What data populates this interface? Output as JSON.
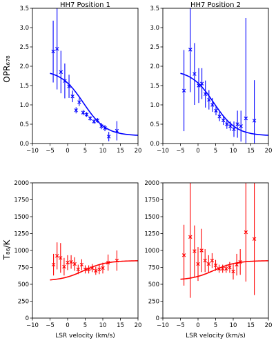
{
  "figure": {
    "shared_ylabels": {
      "top": "OPR₆₇₈",
      "bottom": "T₈₆/K"
    },
    "shared_xlabel": "LSR velocity (km/s)"
  },
  "chart_data": [
    {
      "id": "opr_pos1",
      "type": "scatter",
      "title": "HH7 Position 1",
      "xlabel": "",
      "ylabel": "OPR678",
      "xlim": [
        -10,
        20
      ],
      "ylim": [
        0,
        3.5
      ],
      "xticks": [
        -10,
        -5,
        0,
        5,
        10,
        15,
        20
      ],
      "yticks": [
        0.0,
        0.5,
        1.0,
        1.5,
        2.0,
        2.5,
        3.0,
        3.5
      ],
      "ytick_labels": [
        "0.0",
        "0.5",
        "1.0",
        "1.5",
        "2.0",
        "2.5",
        "3.0",
        "3.5"
      ],
      "color": "#0000ff",
      "points": [
        {
          "x": -4.1,
          "y": 2.38,
          "err": 0.8
        },
        {
          "x": -3.0,
          "y": 2.45,
          "err": 1.05
        },
        {
          "x": -1.9,
          "y": 1.85,
          "err": 0.55
        },
        {
          "x": -0.8,
          "y": 1.62,
          "err": 0.45
        },
        {
          "x": 0.4,
          "y": 1.48,
          "err": 0.3
        },
        {
          "x": 1.4,
          "y": 1.22,
          "err": 0.15
        },
        {
          "x": 2.4,
          "y": 0.86,
          "err": 0.08
        },
        {
          "x": 3.3,
          "y": 1.07,
          "err": 0.1
        },
        {
          "x": 4.4,
          "y": 0.8,
          "err": 0.07
        },
        {
          "x": 5.4,
          "y": 0.75,
          "err": 0.06
        },
        {
          "x": 6.4,
          "y": 0.65,
          "err": 0.06
        },
        {
          "x": 7.5,
          "y": 0.57,
          "err": 0.06
        },
        {
          "x": 8.5,
          "y": 0.6,
          "err": 0.06
        },
        {
          "x": 9.6,
          "y": 0.45,
          "err": 0.08
        },
        {
          "x": 10.6,
          "y": 0.4,
          "err": 0.08
        },
        {
          "x": 11.7,
          "y": 0.18,
          "err": 0.12
        },
        {
          "x": 14.0,
          "y": 0.33,
          "err": 0.25
        }
      ],
      "model": {
        "y_start": 1.9,
        "y_end": 0.2,
        "x_mid": 4.5,
        "width": 3.2,
        "x_start": -5,
        "x_end": 20
      }
    },
    {
      "id": "opr_pos2",
      "type": "scatter",
      "title": "HH7 Position 2",
      "xlabel": "",
      "ylabel": "",
      "xlim": [
        -10,
        20
      ],
      "ylim": [
        0,
        3.5
      ],
      "xticks": [
        -10,
        -5,
        0,
        5,
        10,
        15,
        20
      ],
      "yticks": [
        0.0,
        0.5,
        1.0,
        1.5,
        2.0,
        2.5,
        3.0,
        3.5
      ],
      "ytick_labels": [
        "0.0",
        "0.5",
        "1.0",
        "1.5",
        "2.0",
        "2.5",
        "3.0",
        "3.5"
      ],
      "color": "#0000ff",
      "points": [
        {
          "x": -4.0,
          "y": 1.37,
          "err": 1.05
        },
        {
          "x": -2.2,
          "y": 2.43,
          "err": 1.1
        },
        {
          "x": -1.0,
          "y": 1.8,
          "err": 0.8
        },
        {
          "x": 0.2,
          "y": 1.5,
          "err": 0.45
        },
        {
          "x": 1.1,
          "y": 1.55,
          "err": 0.4
        },
        {
          "x": 2.1,
          "y": 1.28,
          "err": 0.35
        },
        {
          "x": 3.1,
          "y": 1.13,
          "err": 0.25
        },
        {
          "x": 4.1,
          "y": 1.0,
          "err": 0.18
        },
        {
          "x": 5.1,
          "y": 0.85,
          "err": 0.12
        },
        {
          "x": 6.1,
          "y": 0.7,
          "err": 0.12
        },
        {
          "x": 7.2,
          "y": 0.6,
          "err": 0.12
        },
        {
          "x": 8.2,
          "y": 0.5,
          "err": 0.12
        },
        {
          "x": 9.2,
          "y": 0.45,
          "err": 0.12
        },
        {
          "x": 10.2,
          "y": 0.37,
          "err": 0.2
        },
        {
          "x": 11.2,
          "y": 0.5,
          "err": 0.35
        },
        {
          "x": 12.2,
          "y": 0.45,
          "err": 0.4
        },
        {
          "x": 13.6,
          "y": 0.65,
          "err": 2.6
        },
        {
          "x": 16.0,
          "y": 0.59,
          "err": 1.05
        }
      ],
      "model": {
        "y_start": 1.9,
        "y_end": 0.2,
        "x_mid": 4.5,
        "width": 3.2,
        "x_start": -5,
        "x_end": 20
      }
    },
    {
      "id": "temp_pos1",
      "type": "scatter",
      "title": "",
      "xlabel": "LSR velocity (km/s)",
      "ylabel": "T86/K",
      "xlim": [
        -10,
        20
      ],
      "ylim": [
        0,
        2000
      ],
      "xticks": [
        -10,
        -5,
        0,
        5,
        10,
        15,
        20
      ],
      "yticks": [
        0,
        250,
        500,
        750,
        1000,
        1250,
        1500,
        1750,
        2000
      ],
      "ytick_labels": [
        "0",
        "250",
        "500",
        "750",
        "1000",
        "1250",
        "1500",
        "1750",
        "2000"
      ],
      "color": "#ff0000",
      "points": [
        {
          "x": -4.0,
          "y": 790,
          "err": 160
        },
        {
          "x": -3.0,
          "y": 920,
          "err": 200
        },
        {
          "x": -2.0,
          "y": 890,
          "err": 220
        },
        {
          "x": -1.0,
          "y": 760,
          "err": 130
        },
        {
          "x": 0.0,
          "y": 820,
          "err": 110
        },
        {
          "x": 1.0,
          "y": 830,
          "err": 100
        },
        {
          "x": 2.0,
          "y": 800,
          "err": 100
        },
        {
          "x": 3.0,
          "y": 720,
          "err": 70
        },
        {
          "x": 4.0,
          "y": 790,
          "err": 80
        },
        {
          "x": 5.0,
          "y": 720,
          "err": 60
        },
        {
          "x": 6.0,
          "y": 720,
          "err": 60
        },
        {
          "x": 7.0,
          "y": 740,
          "err": 60
        },
        {
          "x": 8.0,
          "y": 700,
          "err": 60
        },
        {
          "x": 9.0,
          "y": 720,
          "err": 70
        },
        {
          "x": 10.0,
          "y": 740,
          "err": 80
        },
        {
          "x": 11.5,
          "y": 820,
          "err": 120
        },
        {
          "x": 14.0,
          "y": 850,
          "err": 150
        }
      ],
      "model": {
        "y_start": 550,
        "y_end": 850,
        "x_mid": 4.5,
        "width": 3.2,
        "x_start": -5,
        "x_end": 20
      }
    },
    {
      "id": "temp_pos2",
      "type": "scatter",
      "title": "",
      "xlabel": "LSR velocity (km/s)",
      "ylabel": "",
      "xlim": [
        -10,
        20
      ],
      "ylim": [
        0,
        2000
      ],
      "xticks": [
        -10,
        -5,
        0,
        5,
        10,
        15,
        20
      ],
      "yticks": [
        0,
        250,
        500,
        750,
        1000,
        1250,
        1500,
        1750,
        2000
      ],
      "ytick_labels": [
        "0",
        "250",
        "500",
        "750",
        "1000",
        "1250",
        "1500",
        "1750",
        "2000"
      ],
      "color": "#ff0000",
      "points": [
        {
          "x": -4.0,
          "y": 930,
          "err": 450
        },
        {
          "x": -2.2,
          "y": 1200,
          "err": 900
        },
        {
          "x": -1.0,
          "y": 990,
          "err": 380
        },
        {
          "x": 0.0,
          "y": 800,
          "err": 250
        },
        {
          "x": 1.0,
          "y": 1000,
          "err": 320
        },
        {
          "x": 2.0,
          "y": 850,
          "err": 170
        },
        {
          "x": 3.0,
          "y": 800,
          "err": 130
        },
        {
          "x": 4.0,
          "y": 850,
          "err": 110
        },
        {
          "x": 5.0,
          "y": 780,
          "err": 80
        },
        {
          "x": 6.0,
          "y": 730,
          "err": 60
        },
        {
          "x": 7.0,
          "y": 730,
          "err": 60
        },
        {
          "x": 8.0,
          "y": 730,
          "err": 60
        },
        {
          "x": 9.0,
          "y": 750,
          "err": 80
        },
        {
          "x": 10.0,
          "y": 690,
          "err": 120
        },
        {
          "x": 11.0,
          "y": 790,
          "err": 160
        },
        {
          "x": 12.0,
          "y": 830,
          "err": 190
        },
        {
          "x": 13.6,
          "y": 1270,
          "err": 730
        },
        {
          "x": 16.0,
          "y": 1170,
          "err": 830
        }
      ],
      "model": {
        "y_start": 560,
        "y_end": 850,
        "x_mid": 4.5,
        "width": 3.2,
        "x_start": -5,
        "x_end": 20
      }
    }
  ]
}
